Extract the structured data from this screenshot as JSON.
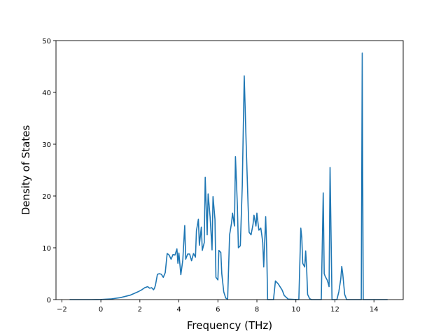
{
  "chart_data": {
    "type": "line",
    "title": "",
    "xlabel": "Frequency (THz)",
    "ylabel": "Density of States",
    "xlim": [
      -2.3,
      15.5
    ],
    "ylim": [
      0,
      50
    ],
    "xticks": [
      -2,
      0,
      2,
      4,
      6,
      8,
      10,
      12,
      14
    ],
    "yticks": [
      0,
      10,
      20,
      30,
      40,
      50
    ],
    "grid": false,
    "legend": "none",
    "line_color": "#1f77b4",
    "series": [
      {
        "points": [
          [
            -1.6,
            0
          ],
          [
            -0.5,
            0
          ],
          [
            0.0,
            0.02
          ],
          [
            0.5,
            0.12
          ],
          [
            1.0,
            0.38
          ],
          [
            1.5,
            0.85
          ],
          [
            1.9,
            1.5
          ],
          [
            2.1,
            1.9
          ],
          [
            2.25,
            2.3
          ],
          [
            2.4,
            2.5
          ],
          [
            2.5,
            2.2
          ],
          [
            2.6,
            2.3
          ],
          [
            2.7,
            1.9
          ],
          [
            2.75,
            2.2
          ],
          [
            2.8,
            2.8
          ],
          [
            2.9,
            4.9
          ],
          [
            3.0,
            5.0
          ],
          [
            3.1,
            4.9
          ],
          [
            3.2,
            4.3
          ],
          [
            3.3,
            5.2
          ],
          [
            3.4,
            8.9
          ],
          [
            3.5,
            8.6
          ],
          [
            3.6,
            7.8
          ],
          [
            3.7,
            8.7
          ],
          [
            3.8,
            8.6
          ],
          [
            3.9,
            9.8
          ],
          [
            3.95,
            7.0
          ],
          [
            4.0,
            9.0
          ],
          [
            4.1,
            4.8
          ],
          [
            4.2,
            7.6
          ],
          [
            4.3,
            14.3
          ],
          [
            4.35,
            7.8
          ],
          [
            4.45,
            8.8
          ],
          [
            4.55,
            8.8
          ],
          [
            4.65,
            7.5
          ],
          [
            4.75,
            8.9
          ],
          [
            4.85,
            8.2
          ],
          [
            4.9,
            13.3
          ],
          [
            5.0,
            15.5
          ],
          [
            5.05,
            10.5
          ],
          [
            5.15,
            14.0
          ],
          [
            5.2,
            9.5
          ],
          [
            5.3,
            11.0
          ],
          [
            5.35,
            23.6
          ],
          [
            5.45,
            12.5
          ],
          [
            5.5,
            20.4
          ],
          [
            5.6,
            16.0
          ],
          [
            5.7,
            9.6
          ],
          [
            5.75,
            19.9
          ],
          [
            5.85,
            15.5
          ],
          [
            5.9,
            4.3
          ],
          [
            6.0,
            3.8
          ],
          [
            6.05,
            9.5
          ],
          [
            6.15,
            9.1
          ],
          [
            6.2,
            5.0
          ],
          [
            6.3,
            1.5
          ],
          [
            6.4,
            0.3
          ],
          [
            6.5,
            0.1
          ],
          [
            6.6,
            12.5
          ],
          [
            6.7,
            14.8
          ],
          [
            6.75,
            16.7
          ],
          [
            6.85,
            14.2
          ],
          [
            6.9,
            27.6
          ],
          [
            7.0,
            18.0
          ],
          [
            7.05,
            10.0
          ],
          [
            7.15,
            10.4
          ],
          [
            7.25,
            22.0
          ],
          [
            7.35,
            43.2
          ],
          [
            7.45,
            30.0
          ],
          [
            7.55,
            18.0
          ],
          [
            7.6,
            13.0
          ],
          [
            7.7,
            12.5
          ],
          [
            7.8,
            14.5
          ],
          [
            7.85,
            16.3
          ],
          [
            7.95,
            14.2
          ],
          [
            8.0,
            16.7
          ],
          [
            8.05,
            15.0
          ],
          [
            8.1,
            13.4
          ],
          [
            8.2,
            13.8
          ],
          [
            8.25,
            12.5
          ],
          [
            8.3,
            11.0
          ],
          [
            8.35,
            6.3
          ],
          [
            8.45,
            16.0
          ],
          [
            8.5,
            10.0
          ],
          [
            8.55,
            0
          ],
          [
            8.85,
            0
          ],
          [
            8.95,
            3.6
          ],
          [
            9.1,
            3.0
          ],
          [
            9.3,
            1.8
          ],
          [
            9.4,
            0.8
          ],
          [
            9.6,
            0.1
          ],
          [
            10.15,
            0
          ],
          [
            10.25,
            13.8
          ],
          [
            10.3,
            12.0
          ],
          [
            10.35,
            7.0
          ],
          [
            10.45,
            6.3
          ],
          [
            10.5,
            9.4
          ],
          [
            10.55,
            6.0
          ],
          [
            10.6,
            1.0
          ],
          [
            10.7,
            0.2
          ],
          [
            10.8,
            0
          ],
          [
            11.3,
            0
          ],
          [
            11.4,
            20.6
          ],
          [
            11.45,
            5.0
          ],
          [
            11.5,
            4.5
          ],
          [
            11.6,
            3.8
          ],
          [
            11.65,
            3.2
          ],
          [
            11.7,
            2.5
          ],
          [
            11.75,
            25.5
          ],
          [
            11.85,
            0
          ],
          [
            12.1,
            0
          ],
          [
            12.2,
            1.5
          ],
          [
            12.3,
            4.0
          ],
          [
            12.35,
            6.4
          ],
          [
            12.4,
            5.0
          ],
          [
            12.5,
            1.0
          ],
          [
            12.6,
            0
          ],
          [
            13.2,
            0
          ],
          [
            13.35,
            0
          ],
          [
            13.4,
            47.6
          ],
          [
            13.45,
            0
          ],
          [
            14.0,
            0
          ],
          [
            14.7,
            0
          ]
        ]
      }
    ]
  }
}
